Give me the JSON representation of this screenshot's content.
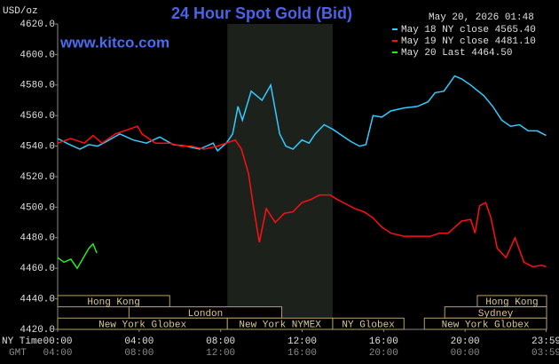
{
  "chart_data": {
    "type": "line",
    "title": "24 Hour Spot Gold (Bid)",
    "y_label": "USD/oz",
    "watermark": "www.kitco.com",
    "timestamp": "May 20, 2026 01:48",
    "x_label": "NY Time",
    "x2_label": "GMT",
    "xlim": [
      0,
      24
    ],
    "xticks": [
      {
        "value": 0,
        "label": "00:00"
      },
      {
        "value": 4,
        "label": "04:00"
      },
      {
        "value": 8,
        "label": "08:00"
      },
      {
        "value": 12,
        "label": "12:00"
      },
      {
        "value": 16,
        "label": "16:00"
      },
      {
        "value": 20,
        "label": "20:00"
      },
      {
        "value": 23.98,
        "label": "23:59"
      }
    ],
    "x2ticks": [
      {
        "value": 0,
        "label": "04:00"
      },
      {
        "value": 4,
        "label": "08:00"
      },
      {
        "value": 8,
        "label": "12:00"
      },
      {
        "value": 12,
        "label": "16:00"
      },
      {
        "value": 16,
        "label": "20:00"
      },
      {
        "value": 20,
        "label": "00:00"
      },
      {
        "value": 23.98,
        "label": "03:59"
      }
    ],
    "ylim": [
      4420,
      4620
    ],
    "yticks": [
      {
        "value": 4420,
        "label": "4420.0"
      },
      {
        "value": 4440,
        "label": "4440.0"
      },
      {
        "value": 4460,
        "label": "4460.0"
      },
      {
        "value": 4480,
        "label": "4480.0"
      },
      {
        "value": 4500,
        "label": "4500.0"
      },
      {
        "value": 4520,
        "label": "4520.0"
      },
      {
        "value": 4540,
        "label": "4540.0"
      },
      {
        "value": 4560,
        "label": "4560.0"
      },
      {
        "value": 4580,
        "label": "4580.0"
      },
      {
        "value": 4600,
        "label": "4600.0"
      },
      {
        "value": 4620,
        "label": "4620.0"
      }
    ],
    "grid": false,
    "shade": [
      8.33,
      13.5
    ],
    "series": [
      {
        "name": "May 18 NY close 4565.40",
        "color": "#33ccff",
        "x": [
          0,
          0.44,
          1.09,
          1.53,
          1.96,
          2.4,
          3.05,
          3.71,
          4.36,
          5.01,
          5.67,
          6.32,
          6.97,
          7.63,
          7.85,
          8.28,
          8.59,
          8.85,
          9.07,
          9.5,
          10.03,
          10.46,
          10.9,
          11.2,
          11.55,
          11.99,
          12.34,
          12.64,
          13.08,
          13.51,
          13.95,
          14.39,
          14.82,
          15.13,
          15.48,
          15.91,
          16.35,
          17.0,
          17.65,
          18.18,
          18.53,
          18.96,
          19.49,
          19.83,
          20.27,
          20.92,
          21.36,
          21.8,
          22.23,
          22.67,
          23.1,
          23.54,
          23.98
        ],
        "values": [
          4545,
          4542,
          4538,
          4541,
          4540,
          4543,
          4548,
          4544,
          4542,
          4546,
          4541,
          4540,
          4538,
          4542,
          4537,
          4542,
          4548,
          4566,
          4557,
          4576,
          4570,
          4580,
          4548,
          4540,
          4538,
          4544,
          4542,
          4548,
          4554,
          4551,
          4547,
          4543,
          4540,
          4541,
          4560,
          4559,
          4563,
          4565,
          4566,
          4569,
          4575,
          4576,
          4586,
          4584,
          4580,
          4573,
          4566,
          4557,
          4553,
          4554,
          4550,
          4550,
          4547
        ]
      },
      {
        "name": "May 19 NY close 4481.10",
        "color": "#ff1010",
        "x": [
          0,
          0.65,
          1.31,
          1.74,
          2.18,
          2.83,
          3.49,
          3.92,
          4.14,
          4.8,
          5.45,
          6.1,
          6.54,
          7.19,
          7.85,
          8.28,
          8.72,
          9.02,
          9.37,
          9.59,
          9.9,
          10.24,
          10.68,
          11.12,
          11.55,
          11.99,
          12.42,
          12.86,
          13.38,
          13.73,
          14.17,
          14.6,
          15.04,
          15.48,
          15.91,
          16.35,
          17.0,
          17.65,
          18.31,
          18.74,
          19.18,
          19.83,
          20.27,
          20.49,
          20.71,
          21.01,
          21.27,
          21.58,
          22.01,
          22.45,
          22.89,
          23.32,
          23.76,
          23.98
        ],
        "values": [
          4542,
          4545,
          4542,
          4547,
          4542,
          4548,
          4551,
          4553,
          4548,
          4542,
          4542,
          4540,
          4540,
          4538,
          4540,
          4542,
          4544,
          4538,
          4522,
          4502,
          4477,
          4499,
          4490,
          4496,
          4497,
          4503,
          4505,
          4508,
          4508,
          4505,
          4502,
          4499,
          4497,
          4493,
          4487,
          4483,
          4481,
          4481,
          4481,
          4483,
          4483,
          4491,
          4492,
          4483,
          4501,
          4503,
          4493,
          4473,
          4467,
          4480,
          4464,
          4461,
          4462,
          4461
        ]
      },
      {
        "name": "May 20 Last 4464.50",
        "color": "#22ee22",
        "x": [
          0,
          0.31,
          0.65,
          0.96,
          1.31,
          1.53,
          1.74,
          1.92
        ],
        "values": [
          4467,
          4464,
          4466,
          4460,
          4468,
          4473,
          4476,
          4470
        ]
      }
    ],
    "session_rows": [
      [
        {
          "label": "Hong Kong",
          "start": 0,
          "end": 5.5
        },
        {
          "label": "Hong Kong",
          "start": 20.6,
          "end": 24
        }
      ],
      [
        {
          "label": "London",
          "start": 3.5,
          "end": 11
        },
        {
          "label": "Sydney",
          "start": 19,
          "end": 24
        }
      ],
      [
        {
          "label": "New York Globex",
          "start": 0,
          "end": 8.33
        },
        {
          "label": "New York NYMEX",
          "start": 8.33,
          "end": 13.5
        },
        {
          "label": "NY Globex",
          "start": 13.5,
          "end": 17
        },
        {
          "label": "New York Globex",
          "start": 18,
          "end": 24
        }
      ]
    ]
  }
}
